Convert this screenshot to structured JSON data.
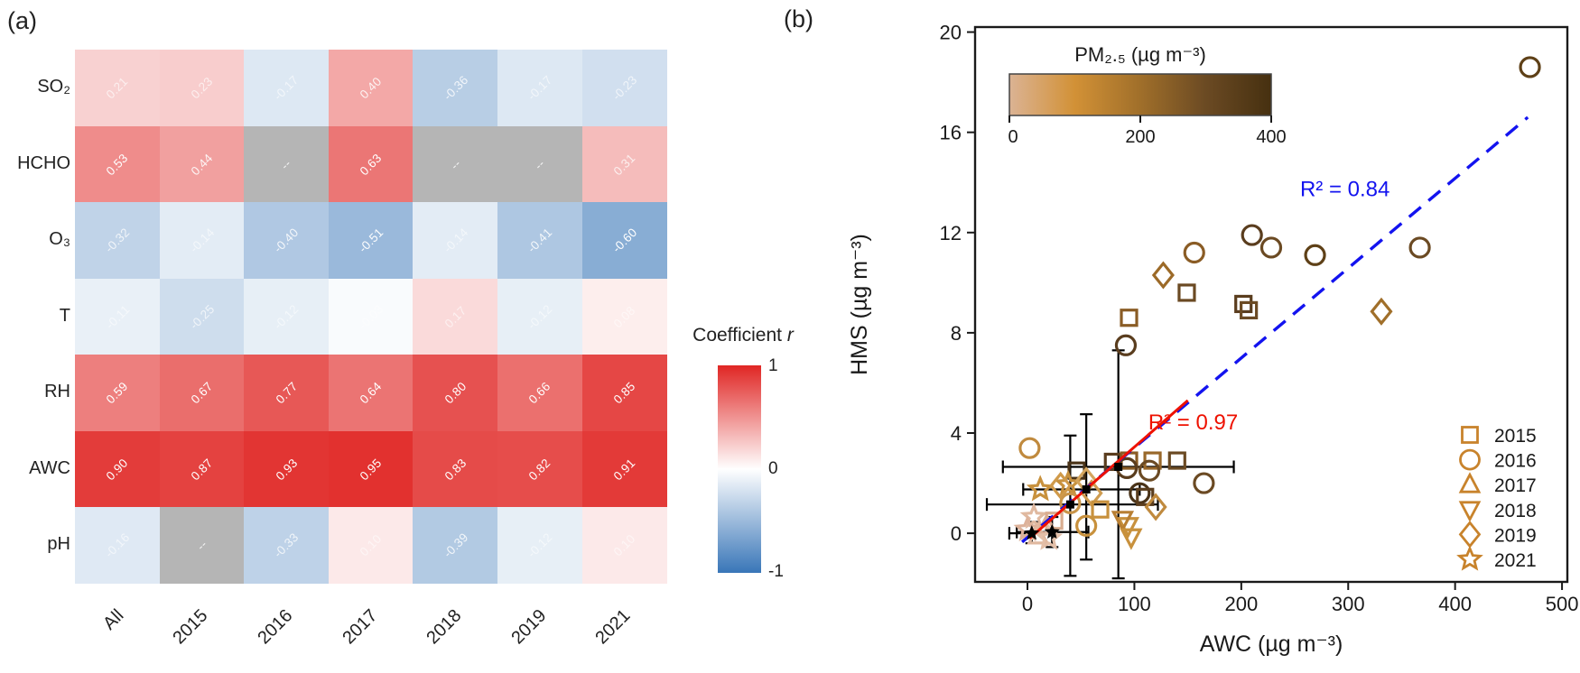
{
  "panel_a_label": "(a)",
  "panel_b_label": "(b)",
  "chart_data": [
    {
      "type": "heatmap",
      "title": "",
      "rows": [
        "SO₂",
        "HCHO",
        "O₃",
        "T",
        "RH",
        "AWC",
        "pH"
      ],
      "columns": [
        "All",
        "2015",
        "2016",
        "2017",
        "2018",
        "2019",
        "2021"
      ],
      "values": [
        [
          0.21,
          0.23,
          -0.17,
          0.4,
          -0.36,
          -0.17,
          -0.23
        ],
        [
          0.53,
          0.44,
          null,
          0.63,
          null,
          null,
          0.31
        ],
        [
          -0.32,
          -0.14,
          -0.4,
          -0.51,
          -0.14,
          -0.41,
          -0.6
        ],
        [
          -0.11,
          -0.25,
          -0.12,
          -0.03,
          0.17,
          -0.12,
          0.08
        ],
        [
          0.59,
          0.67,
          0.77,
          0.64,
          0.8,
          0.66,
          0.85
        ],
        [
          0.9,
          0.87,
          0.93,
          0.95,
          0.83,
          0.82,
          0.91
        ],
        [
          -0.16,
          null,
          -0.33,
          0.1,
          -0.39,
          -0.12,
          0.1
        ]
      ],
      "missing_label": "--",
      "colorbar": {
        "title": "Coefficient",
        "title_var": "r",
        "ticks": [
          "1",
          "0",
          "-1"
        ],
        "color_positive": "#e02624",
        "color_zero": "#ffffff",
        "color_negative": "#3976b8",
        "color_missing": "#b5b5b5"
      }
    },
    {
      "type": "scatter",
      "xlabel": "AWC (µg m⁻³)",
      "ylabel": "HMS (µg m⁻³)",
      "xlim": [
        -49,
        505
      ],
      "ylim": [
        -1.94,
        20.2
      ],
      "x_ticks": [
        0,
        100,
        200,
        300,
        400,
        500
      ],
      "y_ticks": [
        0,
        4,
        8,
        12,
        16,
        20
      ],
      "grid": false,
      "inset_colorbar": {
        "title": "PM₂.₅ (µg m⁻³)",
        "ticks": [
          0,
          200,
          400
        ],
        "gradient": [
          "#dbb394",
          "#d29136",
          "#a06f2a",
          "#6b4a23",
          "#463010"
        ]
      },
      "fit_lines": [
        {
          "name": "blue-dashed-fit",
          "label": "R² = 0.84",
          "color": "#1313ef",
          "style": "dashed",
          "x": [
            -5,
            468
          ],
          "y": [
            -0.35,
            16.6
          ],
          "label_pos": [
            255,
            13.45
          ]
        },
        {
          "name": "red-solid-fit",
          "label": "R² = 0.97",
          "color": "#ee1100",
          "style": "solid",
          "x": [
            2,
            150
          ],
          "y": [
            -0.2,
            5.3
          ],
          "label_pos": [
            113,
            4.15
          ]
        }
      ],
      "legend": {
        "position": "lower right",
        "items": [
          {
            "year": "2015",
            "shape": "square"
          },
          {
            "year": "2016",
            "shape": "circle"
          },
          {
            "year": "2017",
            "shape": "triangle-up"
          },
          {
            "year": "2018",
            "shape": "triangle-down"
          },
          {
            "year": "2019",
            "shape": "diamond"
          },
          {
            "year": "2021",
            "shape": "star"
          }
        ],
        "marker_color": "#c8832c"
      },
      "points": [
        {
          "x": 470,
          "y": 18.6,
          "year": "2016",
          "color": "#5e4017"
        },
        {
          "x": 367,
          "y": 11.4,
          "year": "2016",
          "color": "#6b4a23"
        },
        {
          "x": 269,
          "y": 11.1,
          "year": "2016",
          "color": "#5e4017"
        },
        {
          "x": 228,
          "y": 11.4,
          "year": "2016",
          "color": "#6b4a23"
        },
        {
          "x": 210,
          "y": 11.9,
          "year": "2016",
          "color": "#5a3d1e"
        },
        {
          "x": 156,
          "y": 11.2,
          "year": "2016",
          "color": "#8a5c25"
        },
        {
          "x": 127,
          "y": 10.3,
          "year": "2019",
          "color": "#9c6a28"
        },
        {
          "x": 331,
          "y": 8.85,
          "year": "2019",
          "color": "#a06f2a"
        },
        {
          "x": 149,
          "y": 9.6,
          "year": "2015",
          "color": "#6b4a23"
        },
        {
          "x": 202,
          "y": 9.15,
          "year": "2015",
          "color": "#5a3d1e"
        },
        {
          "x": 207,
          "y": 8.9,
          "year": "2015",
          "color": "#6b4a23"
        },
        {
          "x": 95,
          "y": 8.6,
          "year": "2015",
          "color": "#8a5c25"
        },
        {
          "x": 92,
          "y": 7.5,
          "year": "2016",
          "color": "#5a3d1e"
        },
        {
          "x": 2,
          "y": 3.4,
          "year": "2016",
          "color": "#c08a3e"
        },
        {
          "x": 46,
          "y": 2.5,
          "year": "2015",
          "color": "#4a3318"
        },
        {
          "x": 80,
          "y": 2.85,
          "year": "2015",
          "color": "#5a3d1e"
        },
        {
          "x": 95,
          "y": 2.9,
          "year": "2015",
          "color": "#8a5c25"
        },
        {
          "x": 117,
          "y": 2.9,
          "year": "2015",
          "color": "#99682a"
        },
        {
          "x": 140,
          "y": 2.9,
          "year": "2015",
          "color": "#6b4a23"
        },
        {
          "x": 93,
          "y": 2.6,
          "year": "2016",
          "color": "#5a3d1e"
        },
        {
          "x": 114,
          "y": 2.5,
          "year": "2016",
          "color": "#6b4a23"
        },
        {
          "x": 165,
          "y": 2.0,
          "year": "2016",
          "color": "#6b4a23"
        },
        {
          "x": 105,
          "y": 1.6,
          "year": "2016",
          "color": "#4a3318"
        },
        {
          "x": 110,
          "y": 1.45,
          "year": "2015",
          "color": "#5a3d1e"
        },
        {
          "x": 120,
          "y": 1.05,
          "year": "2019",
          "color": "#c08a3e"
        },
        {
          "x": 12,
          "y": 1.75,
          "year": "2021",
          "color": "#c8913d"
        },
        {
          "x": 38,
          "y": 1.95,
          "year": "2021",
          "color": "#c8913d"
        },
        {
          "x": 31,
          "y": 1.9,
          "year": "2019",
          "color": "#d09a4a"
        },
        {
          "x": 55,
          "y": 2.1,
          "year": "2019",
          "color": "#d4a55e"
        },
        {
          "x": 60,
          "y": 1.6,
          "year": "2019",
          "color": "#cf9c50"
        },
        {
          "x": 68,
          "y": 0.95,
          "year": "2015",
          "color": "#c8913d"
        },
        {
          "x": 55,
          "y": 0.3,
          "year": "2016",
          "color": "#c8913d"
        },
        {
          "x": 40,
          "y": 1.2,
          "year": "2016",
          "color": "#c99549"
        },
        {
          "x": 94,
          "y": 0.3,
          "year": "2018",
          "color": "#c8913d"
        },
        {
          "x": 89,
          "y": 0.55,
          "year": "2018",
          "color": "#b87f33"
        },
        {
          "x": 97,
          "y": -0.15,
          "year": "2018",
          "color": "#c8913d"
        },
        {
          "x": 6,
          "y": 0.65,
          "year": "2021",
          "color": "#e0b9a0"
        },
        {
          "x": 0,
          "y": 0.15,
          "year": "2021",
          "color": "#ddb29a"
        },
        {
          "x": 10,
          "y": -0.1,
          "year": "2017",
          "color": "#e0b9a0"
        },
        {
          "x": 18,
          "y": 0.3,
          "year": "2017",
          "color": "#dbaf96"
        },
        {
          "x": 25,
          "y": 0.5,
          "year": "2015",
          "color": "#d9ad90"
        },
        {
          "x": 20,
          "y": -0.2,
          "year": "2021",
          "color": "#e3bfa8"
        }
      ],
      "error_bars": [
        {
          "x": 85,
          "y": 2.65,
          "x0": -23,
          "x1": 193,
          "y0": -1.8,
          "y1": 7.3
        },
        {
          "x": 55,
          "y": 1.75,
          "x0": -4,
          "x1": 105,
          "y0": -1.05,
          "y1": 4.75
        },
        {
          "x": 40,
          "y": 1.15,
          "x0": -38,
          "x1": 122,
          "y0": -1.7,
          "y1": 3.9
        },
        {
          "x": 23,
          "y": 0.05,
          "x0": -10,
          "x1": 57,
          "y0": -0.55,
          "y1": 0.65
        },
        {
          "x": 4,
          "y": 0.0,
          "x0": -17,
          "x1": 25,
          "y0": -0.4,
          "y1": 0.45
        }
      ]
    }
  ]
}
